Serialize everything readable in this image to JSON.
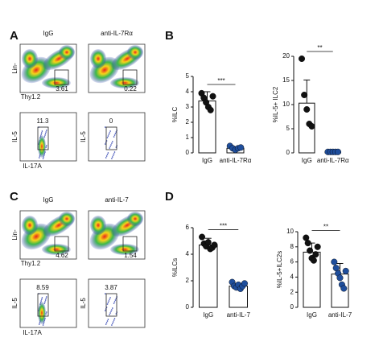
{
  "panel_labels": [
    "A",
    "B",
    "C",
    "D"
  ],
  "flow": [
    {
      "headers": [
        "IgG",
        "anti-IL-7Rα"
      ],
      "top": {
        "y_label": "Lin-",
        "x_label": "Thy1.2",
        "gates": [
          "3.61",
          "0.22"
        ]
      },
      "bottom": {
        "y_label": "IL-5",
        "x_label": "IL-17A",
        "gates": [
          "11.3",
          "0"
        ]
      }
    },
    {
      "headers": [
        "IgG",
        "anti-IL-7"
      ],
      "top": {
        "y_label": "Lin-",
        "x_label": "Thy1.2",
        "gates": [
          "4.62",
          "1.54"
        ]
      },
      "bottom": {
        "y_label": "IL-5",
        "x_label": "IL-17A",
        "gates": [
          "8.59",
          "3.87"
        ]
      }
    }
  ],
  "chart_data": [
    {
      "type": "bar",
      "y_label": "%ILC",
      "categories": [
        "IgG",
        "anti-IL-7Rα"
      ],
      "values": [
        3.4,
        0.3
      ],
      "errors": [
        0.6,
        0.1
      ],
      "points": [
        [
          3.9,
          3.6,
          3.3,
          3.0,
          2.8,
          3.7
        ],
        [
          0.45,
          0.3,
          0.2,
          0.3,
          0.35
        ]
      ],
      "point_colors": [
        "#111111",
        "#1f4e9c"
      ],
      "significance": "***",
      "ylim": [
        0,
        5
      ],
      "yticks": [
        0,
        1,
        2,
        3,
        4,
        5
      ]
    },
    {
      "type": "bar",
      "y_label": "%IL-5+ ILC2",
      "categories": [
        "IgG",
        "anti-IL-7Rα"
      ],
      "values": [
        10.3,
        0.2
      ],
      "errors": [
        4.8,
        0.1
      ],
      "points": [
        [
          19.5,
          12,
          9,
          6,
          5.5
        ],
        [
          0.2,
          0.2,
          0.2,
          0.2,
          0.2
        ]
      ],
      "point_colors": [
        "#111111",
        "#1f4e9c"
      ],
      "significance": "**",
      "ylim": [
        0,
        20
      ],
      "yticks": [
        0,
        5,
        10,
        15,
        20
      ]
    },
    {
      "type": "bar",
      "y_label": "%ILCs",
      "categories": [
        "IgG",
        "anti-IL-7"
      ],
      "values": [
        4.7,
        1.6
      ],
      "errors": [
        0.5,
        0.2
      ],
      "points": [
        [
          5.3,
          4.8,
          4.6,
          4.9,
          4.4,
          4.5,
          4.7
        ],
        [
          1.9,
          1.6,
          1.5,
          1.7,
          1.4,
          1.6,
          1.8
        ]
      ],
      "point_colors": [
        "#111111",
        "#1f4e9c"
      ],
      "significance": "***",
      "ylim": [
        0,
        6
      ],
      "yticks": [
        0,
        2,
        4,
        6
      ]
    },
    {
      "type": "bar",
      "y_label": "%IL-5+ILC2s",
      "categories": [
        "IgG",
        "anti-IL-7"
      ],
      "values": [
        7.3,
        4.4
      ],
      "errors": [
        1.2,
        1.4
      ],
      "points": [
        [
          9.2,
          8.5,
          7.5,
          6.5,
          6.2,
          7.0,
          8.0
        ],
        [
          6.0,
          5.2,
          4.5,
          3.9,
          3.0,
          2.5,
          4.8
        ]
      ],
      "point_colors": [
        "#111111",
        "#1f4e9c"
      ],
      "significance": "**",
      "ylim": [
        0,
        10
      ],
      "yticks": [
        0,
        2,
        4,
        6,
        8,
        10
      ]
    }
  ]
}
